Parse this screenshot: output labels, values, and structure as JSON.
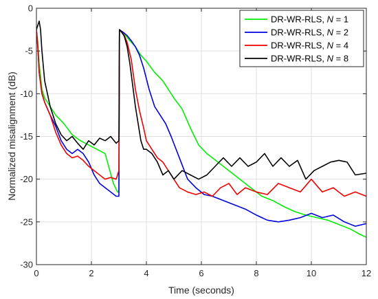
{
  "chart_data": {
    "type": "line",
    "title": "",
    "xlabel": "Time (seconds)",
    "ylabel": "Normalized misalignment (dB)",
    "xlim": [
      0,
      12
    ],
    "ylim": [
      -30,
      0
    ],
    "xticks": [
      0,
      2,
      4,
      6,
      8,
      10,
      12
    ],
    "yticks": [
      0,
      -5,
      -10,
      -15,
      -20,
      -25,
      -30
    ],
    "grid": true,
    "legend_position": "top-right",
    "series": [
      {
        "name_prefix": "DR-WR-RLS, ",
        "name_var": "N",
        "name_suffix": " = 1",
        "color": "#00ee00",
        "x": [
          0,
          0.05,
          0.1,
          0.2,
          0.3,
          0.5,
          0.7,
          1.0,
          1.3,
          1.6,
          1.9,
          2.2,
          2.5,
          2.8,
          2.95,
          3.0,
          3.02,
          3.2,
          3.4,
          3.6,
          3.8,
          4.0,
          4.3,
          4.6,
          5.0,
          5.3,
          5.6,
          5.9,
          6.2,
          6.6,
          7.0,
          7.4,
          7.8,
          8.2,
          8.6,
          9.0,
          9.4,
          9.8,
          10.2,
          10.6,
          11.0,
          11.4,
          11.8,
          12.0
        ],
        "y": [
          -2.5,
          -4.0,
          -6.5,
          -9.5,
          -10.5,
          -11.5,
          -12.5,
          -13.5,
          -14.8,
          -15.5,
          -16.0,
          -16.5,
          -17.0,
          -20.5,
          -21.5,
          -21.5,
          -2.5,
          -3.0,
          -3.8,
          -4.5,
          -5.5,
          -6.2,
          -7.5,
          -8.5,
          -10.5,
          -11.8,
          -14.0,
          -16.0,
          -17.0,
          -18.0,
          -19.0,
          -20.0,
          -21.0,
          -22.0,
          -22.5,
          -23.2,
          -23.8,
          -24.2,
          -24.5,
          -24.8,
          -25.3,
          -25.8,
          -26.5,
          -26.8
        ]
      },
      {
        "name_prefix": "DR-WR-RLS, ",
        "name_var": "N",
        "name_suffix": " = 2",
        "color": "#0000dd",
        "x": [
          0,
          0.05,
          0.1,
          0.2,
          0.3,
          0.5,
          0.7,
          0.9,
          1.1,
          1.3,
          1.5,
          1.7,
          1.9,
          2.1,
          2.3,
          2.5,
          2.7,
          2.9,
          3.0,
          3.02,
          3.15,
          3.3,
          3.45,
          3.6,
          3.75,
          3.9,
          4.1,
          4.3,
          4.5,
          4.7,
          4.9,
          5.2,
          5.5,
          5.8,
          6.1,
          6.4,
          6.8,
          7.2,
          7.6,
          8.0,
          8.4,
          8.8,
          9.2,
          9.6,
          10.0,
          10.4,
          10.8,
          11.2,
          11.6,
          12.0
        ],
        "y": [
          -2.5,
          -4.5,
          -7.5,
          -10.0,
          -11.0,
          -12.5,
          -13.8,
          -15.5,
          -16.5,
          -17.0,
          -16.5,
          -17.0,
          -18.0,
          -19.5,
          -20.5,
          -21.0,
          -21.5,
          -22.0,
          -22.0,
          -2.5,
          -2.8,
          -3.2,
          -3.8,
          -4.5,
          -5.5,
          -7.0,
          -9.5,
          -11.5,
          -12.5,
          -13.5,
          -15.0,
          -17.5,
          -20.0,
          -21.0,
          -21.8,
          -22.0,
          -22.5,
          -23.0,
          -23.5,
          -24.2,
          -24.8,
          -25.0,
          -24.8,
          -24.5,
          -24.0,
          -24.5,
          -24.2,
          -25.0,
          -25.5,
          -25.2
        ]
      },
      {
        "name_prefix": "DR-WR-RLS, ",
        "name_var": "N",
        "name_suffix": " = 4",
        "color": "#ee0000",
        "x": [
          0,
          0.05,
          0.1,
          0.2,
          0.3,
          0.5,
          0.7,
          0.9,
          1.1,
          1.3,
          1.5,
          1.7,
          1.9,
          2.1,
          2.3,
          2.5,
          2.7,
          2.9,
          3.0,
          3.02,
          3.1,
          3.2,
          3.3,
          3.45,
          3.6,
          3.75,
          3.9,
          4.0,
          4.2,
          4.4,
          4.6,
          4.9,
          5.2,
          5.5,
          5.8,
          6.1,
          6.4,
          6.7,
          7.0,
          7.3,
          7.6,
          8.0,
          8.4,
          8.8,
          9.2,
          9.6,
          10.0,
          10.4,
          10.8,
          11.2,
          11.6,
          12.0
        ],
        "y": [
          -2.5,
          -4.5,
          -7.5,
          -10.0,
          -11.0,
          -12.5,
          -14.5,
          -16.0,
          -17.0,
          -17.5,
          -17.3,
          -17.8,
          -18.5,
          -19.0,
          -19.5,
          -20.0,
          -19.8,
          -20.0,
          -19.0,
          -2.5,
          -2.8,
          -3.2,
          -4.0,
          -6.0,
          -9.5,
          -12.0,
          -14.0,
          -15.5,
          -16.5,
          -17.5,
          -18.0,
          -19.5,
          -21.0,
          -21.5,
          -21.8,
          -21.5,
          -22.0,
          -21.0,
          -20.5,
          -21.8,
          -21.0,
          -21.5,
          -21.8,
          -20.5,
          -21.0,
          -21.5,
          -20.0,
          -21.5,
          -21.0,
          -22.0,
          -21.5,
          -22.0
        ]
      },
      {
        "name_prefix": "DR-WR-RLS, ",
        "name_var": "N",
        "name_suffix": " = 8",
        "color": "#000000",
        "x": [
          0,
          0.05,
          0.1,
          0.15,
          0.2,
          0.3,
          0.4,
          0.5,
          0.7,
          0.9,
          1.1,
          1.3,
          1.5,
          1.7,
          1.9,
          2.1,
          2.3,
          2.5,
          2.7,
          2.9,
          3.0,
          3.02,
          3.1,
          3.2,
          3.3,
          3.4,
          3.5,
          3.6,
          3.7,
          3.8,
          3.9,
          4.0,
          4.2,
          4.4,
          4.6,
          4.8,
          5.0,
          5.3,
          5.6,
          5.9,
          6.2,
          6.5,
          6.8,
          7.1,
          7.4,
          7.7,
          8.0,
          8.3,
          8.6,
          8.9,
          9.2,
          9.5,
          9.8,
          10.1,
          10.4,
          10.7,
          11.0,
          11.3,
          11.6,
          12.0
        ],
        "y": [
          -2.5,
          -2.0,
          -1.5,
          -2.5,
          -5.0,
          -8.5,
          -10.0,
          -11.5,
          -13.5,
          -14.8,
          -15.5,
          -15.0,
          -15.8,
          -16.5,
          -15.5,
          -16.0,
          -15.2,
          -15.5,
          -15.0,
          -15.8,
          -15.5,
          -2.5,
          -2.8,
          -3.3,
          -4.5,
          -6.5,
          -9.0,
          -11.5,
          -13.5,
          -15.5,
          -16.5,
          -16.5,
          -17.0,
          -18.0,
          -19.5,
          -19.0,
          -20.0,
          -19.0,
          -19.5,
          -20.0,
          -19.5,
          -18.5,
          -17.5,
          -18.5,
          -17.5,
          -18.5,
          -18.0,
          -17.0,
          -18.5,
          -17.5,
          -18.5,
          -17.8,
          -20.0,
          -19.0,
          -18.5,
          -18.0,
          -17.8,
          -18.0,
          -19.5,
          -19.3
        ]
      }
    ]
  }
}
